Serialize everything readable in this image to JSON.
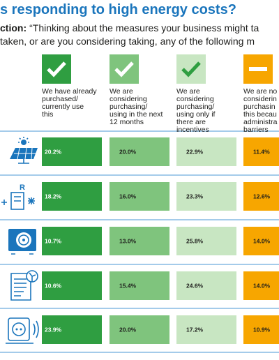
{
  "header": {
    "title": "s responding to high energy costs?",
    "question_label": "ction:",
    "question_lines": [
      "“Thinking about the measures your business might ta",
      "taken, or are you considering taking, any of the following m"
    ]
  },
  "table": {
    "columns": [
      {
        "lines": [
          "We have already",
          "purchased/",
          "currently use",
          "this"
        ],
        "color": "#2f9e41",
        "text_color": "#ffffff"
      },
      {
        "lines": [
          "We are",
          "considering",
          "purchasing/",
          "using in the next",
          "12 months"
        ],
        "color": "#7fc47d",
        "text_color": "#1d1d1b"
      },
      {
        "lines": [
          "We are",
          "considering",
          "purchasing/",
          "using only if",
          "there are",
          "incentives"
        ],
        "color": "#c8e6c2",
        "text_color": "#1d1d1b"
      },
      {
        "lines": [
          "We are no",
          "considerin",
          "purchasin",
          "this becau",
          "administra",
          "barriers"
        ],
        "color": "#f7a600",
        "text_color": "#1d1d1b"
      }
    ],
    "rows": [
      [
        "20.2%",
        "20.0%",
        "22.9%",
        "11.4%"
      ],
      [
        "18.2%",
        "16.0%",
        "23.3%",
        "12.6%"
      ],
      [
        "10.7%",
        "13.0%",
        "25.8%",
        "14.0%"
      ],
      [
        "10.6%",
        "15.4%",
        "24.6%",
        "14.0%"
      ],
      [
        "23.9%",
        "20.0%",
        "17.2%",
        "10.9%"
      ]
    ]
  }
}
